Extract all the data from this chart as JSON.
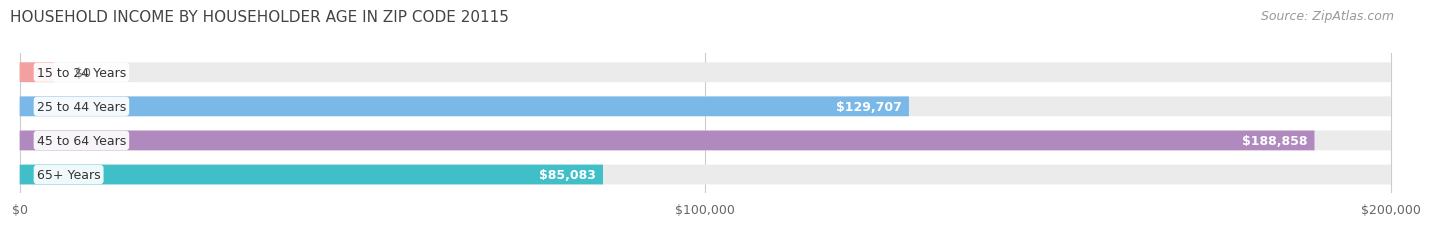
{
  "title": "HOUSEHOLD INCOME BY HOUSEHOLDER AGE IN ZIP CODE 20115",
  "source": "Source: ZipAtlas.com",
  "categories": [
    "15 to 24 Years",
    "25 to 44 Years",
    "45 to 64 Years",
    "65+ Years"
  ],
  "values": [
    0,
    129707,
    188858,
    85083
  ],
  "bar_colors": [
    "#f4a0a0",
    "#7ab8e8",
    "#b08abf",
    "#40bfc8"
  ],
  "bar_bg_color": "#ebebeb",
  "xlim": [
    0,
    200000
  ],
  "xticks": [
    0,
    100000,
    200000
  ],
  "xtick_labels": [
    "$0",
    "$100,000",
    "$200,000"
  ],
  "value_labels": [
    "$0",
    "$129,707",
    "$188,858",
    "$85,083"
  ],
  "title_fontsize": 11,
  "source_fontsize": 9,
  "tick_fontsize": 9,
  "bar_label_fontsize": 9,
  "category_fontsize": 9,
  "bar_height": 0.58,
  "background_color": "#ffffff"
}
